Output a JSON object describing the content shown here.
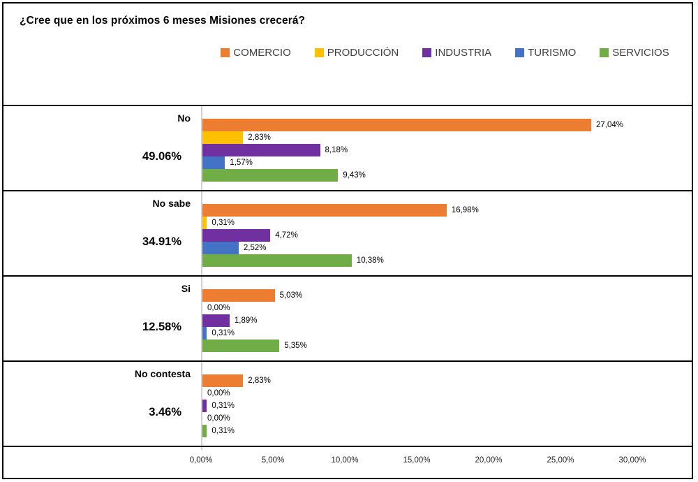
{
  "title": "¿Cree que en los próximos 6 meses Misiones crecerá?",
  "chart_data": {
    "type": "bar",
    "orientation": "horizontal",
    "title": "¿Cree que en los próximos 6 meses Misiones crecerá?",
    "legend_position": "top",
    "grid": false,
    "legend": [
      {
        "label": "COMERCIO",
        "color": "#ED7D31"
      },
      {
        "label": "PRODUCCIÓN",
        "color": "#FFC000"
      },
      {
        "label": "INDUSTRIA",
        "color": "#7030A0"
      },
      {
        "label": "TURISMO",
        "color": "#4472C4"
      },
      {
        "label": "SERVICIOS",
        "color": "#70AD47"
      }
    ],
    "groups": [
      {
        "category": "No",
        "total_label": "49.06%",
        "values": [
          27.04,
          2.83,
          8.18,
          1.57,
          9.43
        ],
        "value_labels": [
          "27,04%",
          "2,83%",
          "8,18%",
          "1,57%",
          "9,43%"
        ]
      },
      {
        "category": "No sabe",
        "total_label": "34.91%",
        "values": [
          16.98,
          0.31,
          4.72,
          2.52,
          10.38
        ],
        "value_labels": [
          "16,98%",
          "0,31%",
          "4,72%",
          "2,52%",
          "10,38%"
        ]
      },
      {
        "category": "Si",
        "total_label": "12.58%",
        "values": [
          5.03,
          0.0,
          1.89,
          0.31,
          5.35
        ],
        "value_labels": [
          "5,03%",
          "0,00%",
          "1,89%",
          "0,31%",
          "5,35%"
        ]
      },
      {
        "category": "No contesta",
        "total_label": "3.46%",
        "values": [
          2.83,
          0.0,
          0.31,
          0.0,
          0.31
        ],
        "value_labels": [
          "2,83%",
          "0,00%",
          "0,31%",
          "0,00%",
          "0,31%"
        ]
      }
    ],
    "x_axis": {
      "ticks": [
        "0,00%",
        "5,00%",
        "10,00%",
        "15,00%",
        "20,00%",
        "25,00%",
        "30,00%"
      ],
      "tick_values": [
        0,
        5,
        10,
        15,
        20,
        25,
        30
      ],
      "max": 30
    }
  }
}
